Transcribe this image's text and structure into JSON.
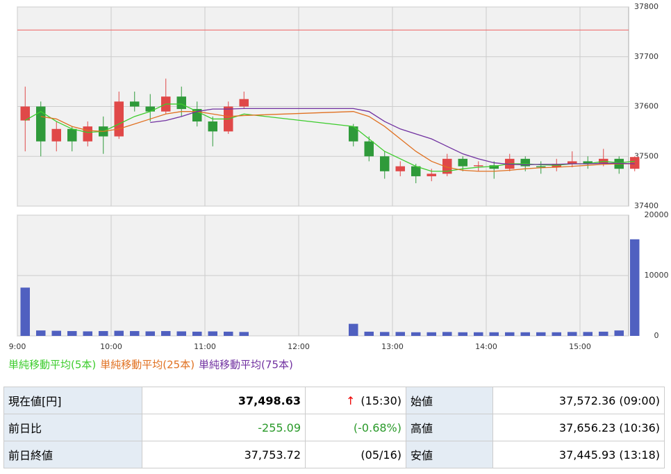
{
  "chart_data": {
    "type": "candlestick",
    "x": [
      "9:00",
      "9:10",
      "9:20",
      "9:30",
      "9:40",
      "9:50",
      "10:00",
      "10:10",
      "10:20",
      "10:30",
      "10:40",
      "10:50",
      "11:00",
      "11:10",
      "11:20",
      "12:30",
      "12:40",
      "12:50",
      "13:00",
      "13:10",
      "13:20",
      "13:30",
      "13:40",
      "13:50",
      "14:00",
      "14:10",
      "14:20",
      "14:30",
      "14:40",
      "14:50",
      "15:00",
      "15:10",
      "15:20",
      "15:30"
    ],
    "open": [
      37572,
      37600,
      37530,
      37555,
      37530,
      37560,
      37540,
      37610,
      37600,
      37590,
      37620,
      37595,
      37570,
      37550,
      37600,
      37560,
      37530,
      37500,
      37470,
      37480,
      37460,
      37465,
      37495,
      37480,
      37482,
      37475,
      37495,
      37480,
      37478,
      37485,
      37490,
      37485,
      37495,
      37475
    ],
    "high": [
      37640,
      37610,
      37570,
      37560,
      37570,
      37580,
      37630,
      37630,
      37625,
      37656,
      37640,
      37610,
      37580,
      37610,
      37630,
      37565,
      37540,
      37510,
      37490,
      37485,
      37475,
      37505,
      37500,
      37490,
      37490,
      37505,
      37500,
      37490,
      37495,
      37510,
      37500,
      37515,
      37500,
      37500
    ],
    "low": [
      37510,
      37500,
      37510,
      37510,
      37520,
      37505,
      37535,
      37590,
      37570,
      37585,
      37580,
      37560,
      37520,
      37545,
      37595,
      37520,
      37490,
      37455,
      37460,
      37446,
      37450,
      37460,
      37470,
      37470,
      37455,
      37470,
      37470,
      37465,
      37470,
      37478,
      37475,
      37480,
      37465,
      37470
    ],
    "close": [
      37600,
      37530,
      37555,
      37530,
      37560,
      37540,
      37610,
      37600,
      37590,
      37620,
      37595,
      37570,
      37550,
      37600,
      37615,
      37530,
      37500,
      37470,
      37480,
      37460,
      37465,
      37495,
      37480,
      37482,
      37475,
      37495,
      37480,
      37478,
      37485,
      37490,
      37485,
      37495,
      37475,
      37498.63
    ],
    "up_color": "#e04848",
    "down_color": "#2f9a3a",
    "series": [
      {
        "name": "単純移動平均(5本)",
        "color": "#3ccc2c",
        "values": [
          37572,
          37590,
          37570,
          37555,
          37548,
          37550,
          37565,
          37580,
          37590,
          37605,
          37605,
          37590,
          37575,
          37575,
          37585,
          37560,
          37535,
          37510,
          37495,
          37480,
          37470,
          37470,
          37475,
          37478,
          37480,
          37485,
          37485,
          37483,
          37482,
          37485,
          37485,
          37490,
          37487,
          37490
        ]
      },
      {
        "name": "単純移動平均(25本)",
        "color": "#e07020",
        "values": [
          null,
          37580,
          37575,
          37560,
          37552,
          37550,
          37555,
          37565,
          37575,
          37585,
          37590,
          37590,
          37585,
          37580,
          37582,
          37590,
          37580,
          37560,
          37535,
          37510,
          37490,
          37478,
          37472,
          37470,
          37470,
          37472,
          37475,
          37477,
          37478,
          37480,
          37482,
          37484,
          37485,
          37485
        ]
      },
      {
        "name": "単純移動平均(75本)",
        "color": "#7030a0",
        "values": [
          null,
          null,
          null,
          null,
          null,
          null,
          null,
          null,
          37568,
          37572,
          37580,
          37590,
          37595,
          37595,
          37596,
          37596,
          37590,
          37570,
          37555,
          37545,
          37535,
          37520,
          37505,
          37495,
          37487,
          37484,
          37483,
          37484,
          37484,
          37485,
          37485,
          37486,
          37486,
          37485
        ]
      }
    ],
    "reference_line": 37753.72,
    "reference_color": "#f06060",
    "ylim": [
      37400,
      37800
    ],
    "yticks": [
      37400,
      37500,
      37600,
      37700,
      37800
    ],
    "volume": [
      8000,
      900,
      850,
      800,
      750,
      800,
      850,
      800,
      750,
      800,
      750,
      700,
      750,
      700,
      650,
      2000,
      700,
      650,
      650,
      600,
      600,
      650,
      600,
      600,
      600,
      600,
      600,
      600,
      600,
      650,
      650,
      700,
      900,
      16000
    ],
    "volume_color": "#5060c0",
    "y2lim": [
      0,
      20000
    ],
    "y2ticks": [
      0,
      10000,
      20000
    ],
    "xticks": [
      "9:00",
      "10:00",
      "11:00",
      "12:00",
      "13:00",
      "14:00",
      "15:00"
    ],
    "xlim": [
      "9:00",
      "15:30"
    ],
    "grid": true
  },
  "table": {
    "rows": [
      [
        "現在値[円]",
        "37,498.63",
        "↑",
        "(15:30)",
        "始値",
        "37,572.36 (09:00)"
      ],
      [
        "前日比",
        "-255.09",
        "",
        "(-0.68%)",
        "高値",
        "37,656.23 (10:36)"
      ],
      [
        "前日終値",
        "37,753.72",
        "",
        "(05/16)",
        "安値",
        "37,445.93 (13:18)"
      ]
    ]
  }
}
